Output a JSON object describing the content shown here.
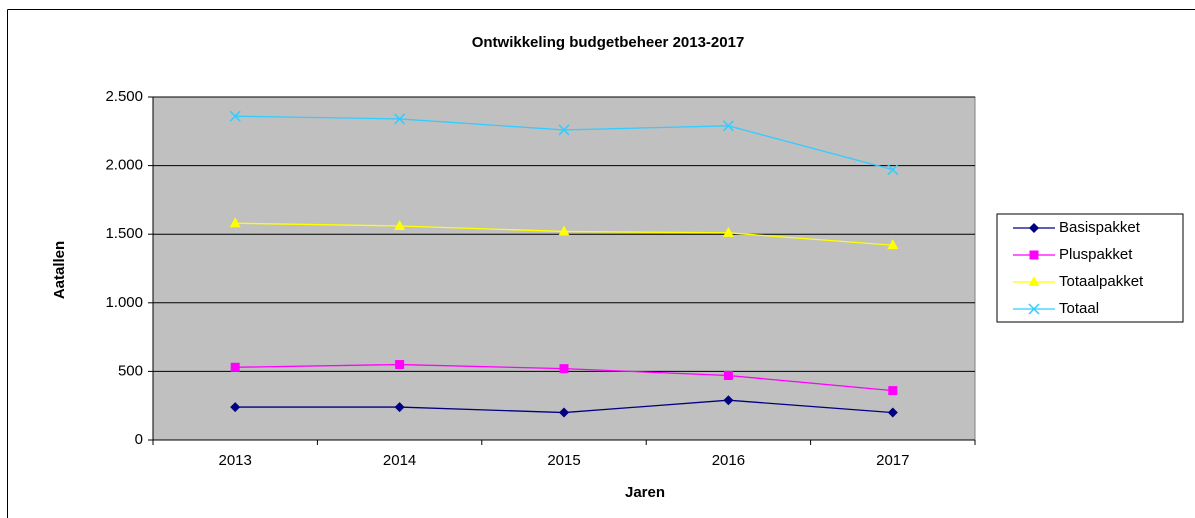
{
  "chart_data": {
    "type": "line",
    "title": "Ontwikkeling budgetbeheer 2013-2017",
    "x_label": "Jaren",
    "y_label": "Aatallen",
    "categories": [
      "2013",
      "2014",
      "2015",
      "2016",
      "2017"
    ],
    "series": [
      {
        "name": "Basispakket",
        "color": "#000080",
        "marker": "diamond",
        "values": [
          240,
          240,
          200,
          290,
          200
        ]
      },
      {
        "name": "Pluspakket",
        "color": "#ff00ff",
        "marker": "square",
        "values": [
          530,
          550,
          520,
          470,
          360
        ]
      },
      {
        "name": "Totaalpakket",
        "color": "#ffff00",
        "marker": "triangle",
        "values": [
          1580,
          1560,
          1520,
          1510,
          1420
        ]
      },
      {
        "name": "Totaal",
        "color": "#33ccff",
        "marker": "x",
        "values": [
          2360,
          2340,
          2260,
          2290,
          1970
        ]
      }
    ],
    "ylim": [
      0,
      2500
    ],
    "yticks": [
      0,
      500,
      {
        "value": 1000,
        "label": "1.000"
      },
      {
        "value": 1500,
        "label": "1.500"
      },
      {
        "value": 2000,
        "label": "2.000"
      },
      {
        "value": 2500,
        "label": "2.500"
      }
    ],
    "grid": true,
    "plot_background": "#c0c0c0",
    "legend": "right"
  }
}
